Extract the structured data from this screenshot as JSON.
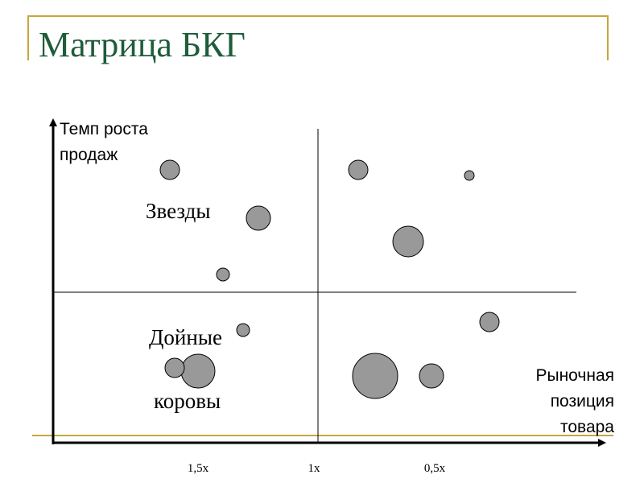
{
  "slide": {
    "title": "Матрица БКГ",
    "colors": {
      "title_text": "#1f5c3a",
      "frame_lines": "#c7a63a",
      "axis": "#000000",
      "quadrant_divider": "#000000",
      "bubble_fill": "#999999",
      "bubble_stroke": "#000000"
    }
  },
  "diagram": {
    "y_axis_label": [
      "Темп роста",
      "продаж"
    ],
    "x_axis_label": [
      "Рыночная",
      "позиция",
      "товара"
    ],
    "quadrant_labels": {
      "stars": "Звезды",
      "cash_cows_line1": "Дойные",
      "cash_cows_line2": "коровы"
    },
    "x_ticks": [
      "1,5x",
      "1x",
      "0,5x"
    ]
  }
}
